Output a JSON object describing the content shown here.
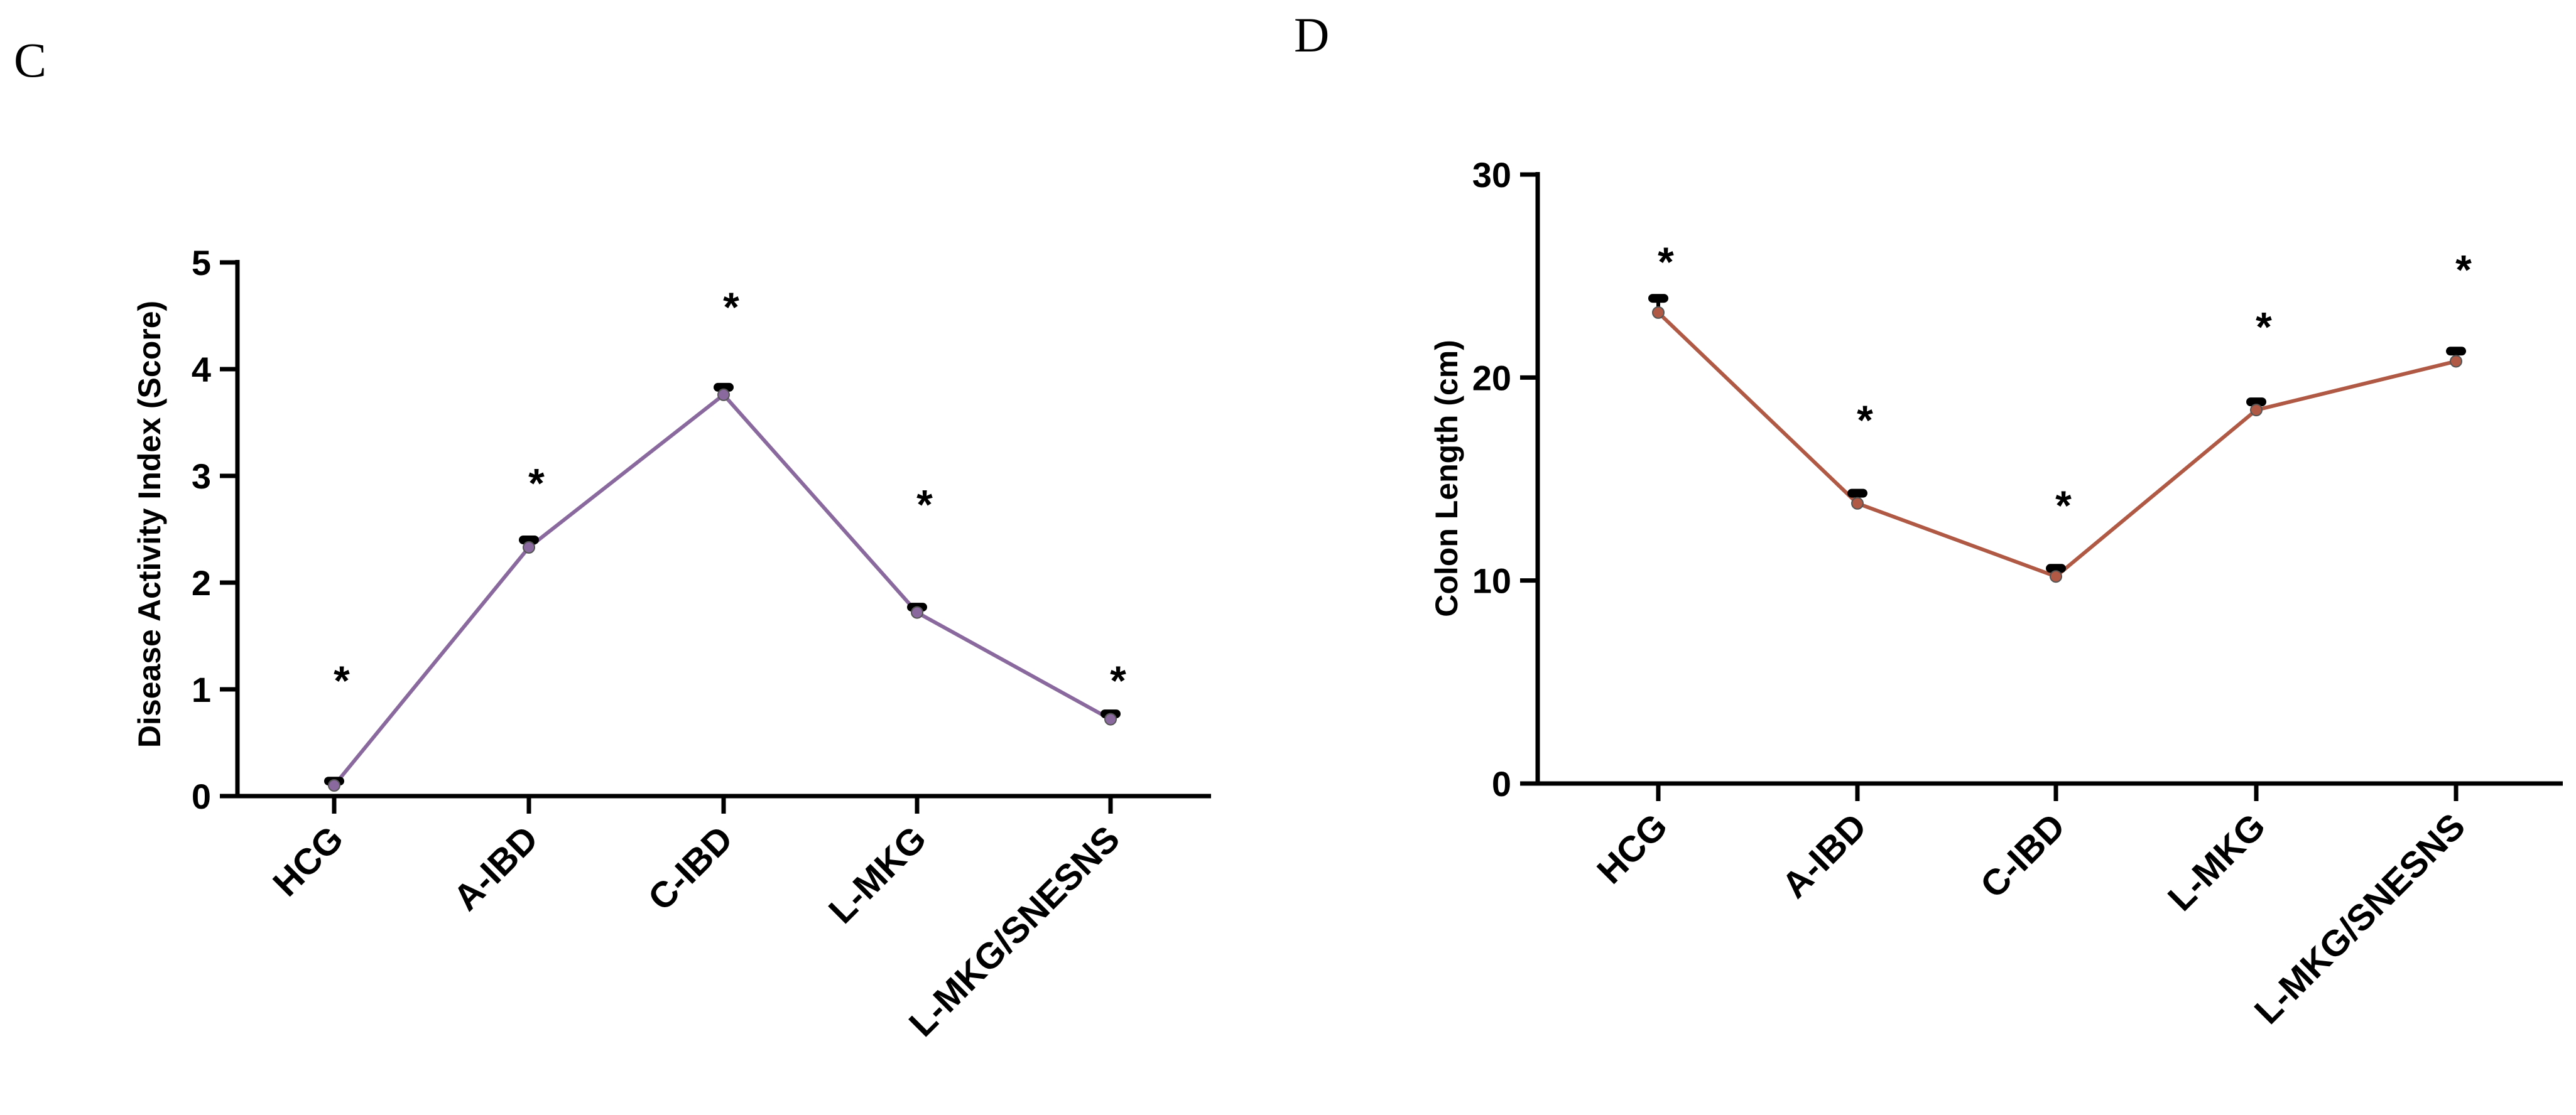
{
  "chart_data": [
    {
      "type": "line",
      "panel": "C",
      "title": "",
      "xlabel": "",
      "ylabel": "Disease Activity Index (Score)",
      "categories": [
        "HCG",
        "A-IBD",
        "C-IBD",
        "L-MKG",
        "L-MKG/SNESNS"
      ],
      "series": [
        {
          "name": "Disease Activity Index",
          "values": [
            0.1,
            2.33,
            3.76,
            1.72,
            0.72
          ],
          "error": [
            0.04,
            0.07,
            0.07,
            0.05,
            0.05
          ],
          "color": "#8A6A9E"
        }
      ],
      "annotations": [
        "*",
        "*",
        "*",
        "*",
        "*"
      ],
      "annotation_values": [
        1.1,
        2.95,
        4.6,
        2.75,
        1.1
      ],
      "ylim": [
        0,
        5
      ],
      "yticks": [
        "0",
        "1",
        "2",
        "3",
        "4",
        "5"
      ]
    },
    {
      "type": "line",
      "panel": "D",
      "title": "",
      "xlabel": "",
      "ylabel": "Colon Length (cm)",
      "categories": [
        "HCG",
        "A-IBD",
        "C-IBD",
        "L-MKG",
        "L-MKG/SNESNS"
      ],
      "series": [
        {
          "name": "Colon Length",
          "values": [
            23.2,
            13.8,
            10.2,
            18.4,
            20.8
          ],
          "error": [
            0.7,
            0.5,
            0.4,
            0.4,
            0.5
          ],
          "color": "#B05A45"
        }
      ],
      "annotations": [
        "*",
        "*",
        "*",
        "*",
        "*"
      ],
      "annotation_values": [
        25.8,
        18.0,
        13.8,
        22.6,
        25.4
      ],
      "ylim": [
        0,
        30
      ],
      "yticks": [
        "0",
        "10",
        "20",
        "30"
      ]
    }
  ]
}
